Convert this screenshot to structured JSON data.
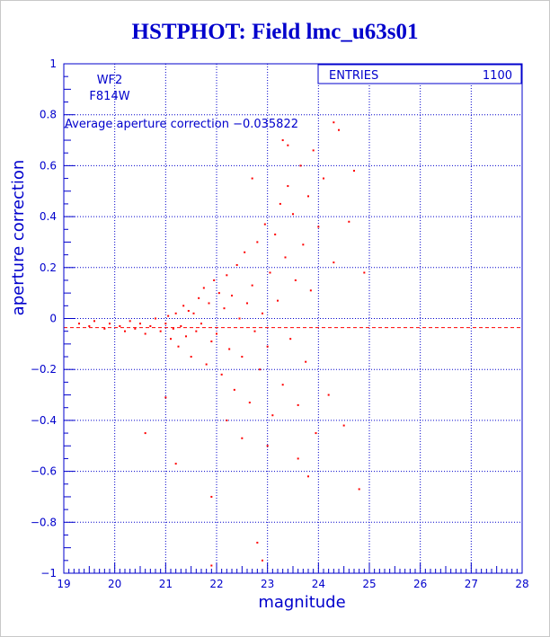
{
  "page_title": "HSTPHOT: Field lmc_u63s01",
  "colors": {
    "axes": "#0000cc",
    "points": "#ff0000"
  },
  "chart_data": {
    "type": "scatter",
    "title": "HSTPHOT: Field lmc_u63s01",
    "xlabel": "magnitude",
    "ylabel": "aperture correction",
    "xlim": [
      19,
      28
    ],
    "ylim": [
      -1,
      1
    ],
    "x_ticks": [
      19,
      20,
      21,
      22,
      23,
      24,
      25,
      26,
      27,
      28
    ],
    "y_ticks": [
      -1,
      -0.8,
      -0.6,
      -0.4,
      -0.2,
      0,
      0.2,
      0.4,
      0.6,
      0.8,
      1
    ],
    "x_tick_labels": [
      "19",
      "20",
      "21",
      "22",
      "23",
      "24",
      "25",
      "26",
      "27",
      "28"
    ],
    "y_tick_labels": [
      "−1",
      "−0.8",
      "−0.6",
      "−0.4",
      "−0.2",
      "0",
      "0.2",
      "0.4",
      "0.6",
      "0.8",
      "1"
    ],
    "grid": true,
    "legend": "none",
    "stats_box": {
      "label": "ENTRIES",
      "value": "1100"
    },
    "annotations": {
      "chip": "WF2",
      "filter": "F814W",
      "average_label": "Average aperture correction",
      "average_value": "−0.035822"
    },
    "reference_line": {
      "y": -0.035822,
      "x_range": [
        19,
        28
      ]
    },
    "entries": 1100,
    "series": [
      {
        "points": [
          [
            19.3,
            -0.02
          ],
          [
            19.5,
            -0.03
          ],
          [
            19.6,
            -0.01
          ],
          [
            19.8,
            -0.04
          ],
          [
            19.9,
            -0.02
          ],
          [
            20.1,
            -0.03
          ],
          [
            20.2,
            -0.05
          ],
          [
            20.3,
            -0.01
          ],
          [
            20.4,
            -0.04
          ],
          [
            20.5,
            -0.02
          ],
          [
            20.6,
            -0.06
          ],
          [
            20.7,
            -0.03
          ],
          [
            20.8,
            0.0
          ],
          [
            20.9,
            -0.05
          ],
          [
            21.0,
            -0.02
          ],
          [
            21.05,
            0.01
          ],
          [
            21.1,
            -0.08
          ],
          [
            21.15,
            -0.04
          ],
          [
            21.2,
            0.02
          ],
          [
            21.25,
            -0.11
          ],
          [
            21.3,
            -0.03
          ],
          [
            21.35,
            0.05
          ],
          [
            21.4,
            -0.07
          ],
          [
            21.45,
            0.03
          ],
          [
            21.5,
            -0.15
          ],
          [
            21.55,
            0.02
          ],
          [
            21.6,
            -0.05
          ],
          [
            21.65,
            0.08
          ],
          [
            21.7,
            -0.02
          ],
          [
            21.75,
            0.12
          ],
          [
            21.8,
            -0.18
          ],
          [
            21.85,
            0.06
          ],
          [
            21.9,
            -0.09
          ],
          [
            21.95,
            0.15
          ],
          [
            22.0,
            -0.06
          ],
          [
            22.05,
            0.1
          ],
          [
            22.1,
            -0.22
          ],
          [
            22.15,
            0.04
          ],
          [
            22.2,
            0.17
          ],
          [
            22.25,
            -0.12
          ],
          [
            22.3,
            0.09
          ],
          [
            22.35,
            -0.28
          ],
          [
            22.4,
            0.21
          ],
          [
            22.45,
            0.0
          ],
          [
            22.5,
            -0.15
          ],
          [
            22.55,
            0.26
          ],
          [
            22.6,
            0.06
          ],
          [
            22.65,
            -0.33
          ],
          [
            22.7,
            0.13
          ],
          [
            22.75,
            -0.05
          ],
          [
            22.8,
            0.3
          ],
          [
            22.85,
            -0.2
          ],
          [
            22.9,
            0.02
          ],
          [
            22.95,
            0.37
          ],
          [
            23.0,
            -0.11
          ],
          [
            23.05,
            0.18
          ],
          [
            23.1,
            -0.38
          ],
          [
            23.15,
            0.33
          ],
          [
            23.2,
            0.07
          ],
          [
            23.25,
            0.45
          ],
          [
            23.3,
            -0.26
          ],
          [
            23.35,
            0.24
          ],
          [
            23.4,
            0.52
          ],
          [
            23.45,
            -0.08
          ],
          [
            23.5,
            0.41
          ],
          [
            23.55,
            0.15
          ],
          [
            23.6,
            -0.34
          ],
          [
            23.65,
            0.6
          ],
          [
            23.7,
            0.29
          ],
          [
            23.75,
            -0.17
          ],
          [
            23.8,
            0.48
          ],
          [
            23.85,
            0.11
          ],
          [
            23.9,
            0.66
          ],
          [
            23.95,
            -0.45
          ],
          [
            24.0,
            0.36
          ],
          [
            24.1,
            0.55
          ],
          [
            24.2,
            -0.3
          ],
          [
            24.3,
            0.22
          ],
          [
            24.4,
            0.74
          ],
          [
            24.5,
            -0.42
          ],
          [
            24.6,
            0.38
          ],
          [
            24.7,
            0.58
          ],
          [
            24.8,
            -0.67
          ],
          [
            24.9,
            0.18
          ],
          [
            23.3,
            0.7
          ],
          [
            23.4,
            0.68
          ],
          [
            21.2,
            -0.57
          ],
          [
            21.9,
            -0.7
          ],
          [
            22.8,
            -0.88
          ],
          [
            21.9,
            -0.97
          ],
          [
            23.8,
            -0.62
          ],
          [
            24.3,
            0.77
          ],
          [
            22.7,
            0.55
          ],
          [
            21.0,
            -0.31
          ],
          [
            20.6,
            -0.45
          ],
          [
            22.2,
            -0.4
          ],
          [
            22.5,
            -0.47
          ],
          [
            23.0,
            -0.5
          ],
          [
            23.6,
            -0.55
          ],
          [
            22.9,
            -0.95
          ]
        ]
      }
    ]
  }
}
